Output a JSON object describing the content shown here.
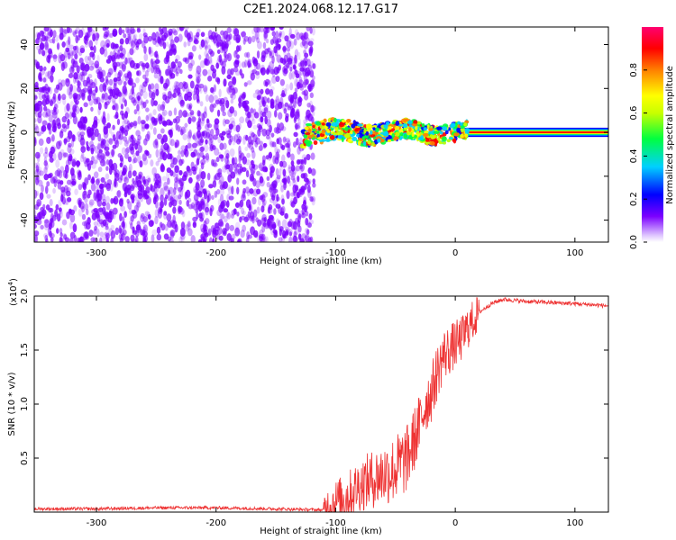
{
  "title": "C2E1.2024.068.12.17.G17",
  "chart_data": [
    {
      "type": "heatmap",
      "xlabel": "Height of straight line (km)",
      "ylabel": "Frequency (Hz)",
      "xlim": [
        -352,
        128
      ],
      "ylim": [
        -50,
        48
      ],
      "xticks": [
        -300,
        -200,
        -100,
        0,
        100
      ],
      "yticks": [
        -40,
        -20,
        0,
        20,
        40
      ],
      "xtick_labels": [
        "-300",
        "-200",
        "-100",
        "0",
        "100"
      ],
      "ytick_labels": [
        "-40",
        "-20",
        "0",
        "20",
        "40"
      ],
      "colorbar": {
        "label": "Normalized spectral amplitude",
        "range": [
          0,
          1
        ],
        "ticks": [
          0.0,
          0.2,
          0.4,
          0.6,
          0.8
        ],
        "tick_labels": [
          "0.0",
          "0.2",
          "0.4",
          "0.6",
          "0.8"
        ],
        "colormap": [
          "#ffffff",
          "#7b00ff",
          "#0000ff",
          "#00d0ff",
          "#00ff40",
          "#c8ff00",
          "#ffff00",
          "#ff8000",
          "#ff0000",
          "#ff0070"
        ]
      },
      "regions": [
        {
          "description_key": "noise",
          "x_range": [
            -352,
            -118
          ],
          "f_range": [
            -50,
            48
          ],
          "amplitude_range": [
            0.0,
            0.15
          ]
        },
        {
          "description_key": "signal_scatter",
          "x_range": [
            -128,
            10
          ],
          "f_range": [
            -8,
            8
          ],
          "amplitude_range": [
            0.2,
            0.9
          ]
        },
        {
          "description_key": "carrier_line",
          "x_range": [
            0,
            128
          ],
          "f_center": 0,
          "amplitude": 0.95
        }
      ]
    },
    {
      "type": "line",
      "xlabel": "Height of straight line (km)",
      "ylabel": "SNR (10 * v/v)",
      "y_multiplier_label": "(x10",
      "y_multiplier_exp": "4",
      "y_multiplier_close": ")",
      "xlim": [
        -352,
        128
      ],
      "ylim": [
        0,
        2.0
      ],
      "xticks": [
        -300,
        -200,
        -100,
        0,
        100
      ],
      "yticks": [
        0.5,
        1.0,
        1.5,
        2.0
      ],
      "xtick_labels": [
        "-300",
        "-200",
        "-100",
        "0",
        "100"
      ],
      "ytick_labels": [
        "0.5",
        "1.0",
        "1.5",
        "2.0"
      ],
      "series_color": "#ee3333",
      "series": [
        {
          "x": [
            -352,
            -300,
            -250,
            -200,
            -150,
            -110,
            -100,
            -90,
            -80,
            -70,
            -60,
            -50,
            -40,
            -30,
            -25,
            -20,
            -15,
            -10,
            -5,
            0,
            5,
            10,
            20,
            30,
            40,
            50,
            60,
            80,
            100,
            128
          ],
          "y": [
            0.03,
            0.03,
            0.04,
            0.04,
            0.03,
            0.02,
            0.1,
            0.15,
            0.25,
            0.3,
            0.35,
            0.4,
            0.5,
            0.8,
            1.0,
            1.1,
            1.3,
            1.45,
            1.5,
            1.55,
            1.6,
            1.7,
            1.85,
            1.93,
            1.97,
            1.96,
            1.95,
            1.94,
            1.93,
            1.91
          ]
        }
      ]
    }
  ]
}
